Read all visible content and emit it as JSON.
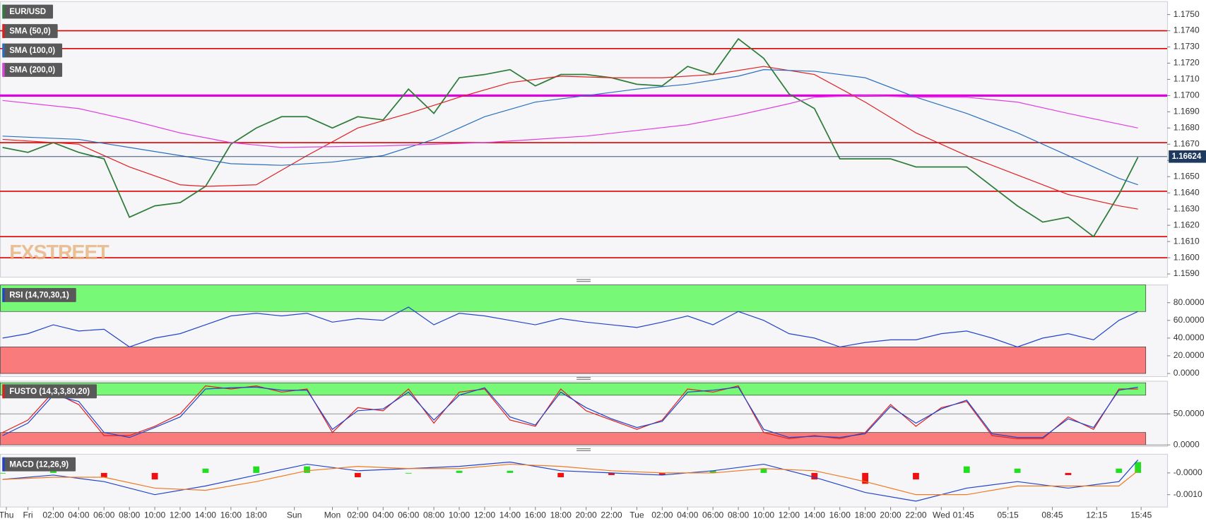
{
  "chart_data": [
    {
      "type": "line",
      "watermark": "FXSTREET",
      "xlim": [
        -2.2,
        89.8
      ],
      "ylim": [
        1.1588,
        1.1758
      ],
      "yticks": [
        {
          "value": 1.159,
          "label": "1.1590"
        },
        {
          "value": 1.16,
          "label": "1.1600"
        },
        {
          "value": 1.161,
          "label": "1.1610"
        },
        {
          "value": 1.162,
          "label": "1.1620"
        },
        {
          "value": 1.163,
          "label": "1.1630"
        },
        {
          "value": 1.164,
          "label": "1.1640"
        },
        {
          "value": 1.165,
          "label": "1.1650"
        },
        {
          "value": 1.166,
          "label": "1.1660"
        },
        {
          "value": 1.167,
          "label": "1.1670"
        },
        {
          "value": 1.168,
          "label": "1.1680"
        },
        {
          "value": 1.169,
          "label": "1.1690"
        },
        {
          "value": 1.17,
          "label": "1.1700"
        },
        {
          "value": 1.171,
          "label": "1.1710"
        },
        {
          "value": 1.172,
          "label": "1.1720"
        },
        {
          "value": 1.173,
          "label": "1.1730"
        },
        {
          "value": 1.174,
          "label": "1.1740"
        },
        {
          "value": 1.175,
          "label": "1.1750"
        }
      ],
      "grid": false,
      "levels": [
        {
          "value": 1.174,
          "color": "#e00000"
        },
        {
          "value": 1.1729,
          "color": "#e00000"
        },
        {
          "value": 1.17,
          "color": "#e000e0"
        },
        {
          "value": 1.1671,
          "color": "#e00000"
        },
        {
          "value": 1.1641,
          "color": "#e00000"
        },
        {
          "value": 1.1613,
          "color": "#e00000"
        },
        {
          "value": 1.16,
          "color": "#e00000"
        }
      ],
      "current_price": {
        "value": 1.16624,
        "label": "1.16624",
        "color": "#1f3a5f"
      },
      "series": [
        {
          "name": "EUR/USD",
          "color": "#2f7d3a",
          "x": [
            -2,
            0,
            2,
            4,
            6,
            8,
            10,
            12,
            14,
            16,
            18,
            20,
            22,
            24,
            26,
            28,
            30,
            32,
            34,
            36,
            38,
            40,
            42,
            44,
            46,
            48,
            50,
            52,
            54,
            56,
            58,
            60,
            62,
            64,
            66,
            68,
            70,
            72,
            74,
            76,
            78,
            80,
            82,
            84,
            86,
            87.5
          ],
          "values": [
            1.1668,
            1.1665,
            1.1671,
            1.1665,
            1.1661,
            1.1625,
            1.1632,
            1.1634,
            1.1644,
            1.167,
            1.168,
            1.1687,
            1.1687,
            1.168,
            1.1687,
            1.1685,
            1.1704,
            1.1689,
            1.1711,
            1.1713,
            1.1716,
            1.1706,
            1.1713,
            1.1713,
            1.1711,
            1.1707,
            1.1706,
            1.1718,
            1.1713,
            1.1735,
            1.1723,
            1.1701,
            1.1692,
            1.1661,
            1.1661,
            1.1661,
            1.1656,
            1.1656,
            1.1656,
            1.1644,
            1.1632,
            1.1622,
            1.1625,
            1.1613,
            1.1639,
            1.1662
          ]
        },
        {
          "name": "SMA (50,0)",
          "color": "#e02020",
          "x": [
            -2,
            4,
            8,
            12,
            14,
            18,
            22,
            26,
            30,
            34,
            38,
            42,
            46,
            50,
            54,
            58,
            62,
            66,
            70,
            74,
            78,
            82,
            86,
            87.5
          ],
          "values": [
            1.1673,
            1.167,
            1.1656,
            1.1645,
            1.1644,
            1.1645,
            1.1663,
            1.168,
            1.1689,
            1.1699,
            1.1708,
            1.1712,
            1.1711,
            1.1711,
            1.1713,
            1.1718,
            1.1713,
            1.1696,
            1.1677,
            1.1663,
            1.1651,
            1.1639,
            1.1632,
            1.163
          ]
        },
        {
          "name": "SMA (100,0)",
          "color": "#2a6fc0",
          "x": [
            -2,
            4,
            8,
            12,
            16,
            20,
            24,
            28,
            32,
            36,
            40,
            44,
            48,
            52,
            56,
            58,
            62,
            66,
            70,
            74,
            78,
            82,
            86,
            87.5
          ],
          "values": [
            1.1675,
            1.1673,
            1.1668,
            1.1663,
            1.1658,
            1.1657,
            1.1659,
            1.1663,
            1.1673,
            1.1687,
            1.1696,
            1.17,
            1.1704,
            1.1707,
            1.1712,
            1.1716,
            1.1715,
            1.1711,
            1.1699,
            1.1689,
            1.1677,
            1.1663,
            1.1649,
            1.1645
          ]
        },
        {
          "name": "SMA (200,0)",
          "color": "#e040e0",
          "x": [
            -2,
            4,
            8,
            12,
            16,
            20,
            28,
            36,
            44,
            52,
            56,
            60,
            62,
            66,
            70,
            74,
            78,
            82,
            87.5
          ],
          "values": [
            1.1697,
            1.1692,
            1.1685,
            1.1677,
            1.1671,
            1.1668,
            1.1669,
            1.1671,
            1.1675,
            1.1682,
            1.1688,
            1.1695,
            1.1699,
            1.17,
            1.1699,
            1.1699,
            1.1696,
            1.1689,
            1.168
          ]
        }
      ]
    },
    {
      "type": "line",
      "title": "RSI (14,70,30,1)",
      "xlim": [
        -2.2,
        89.8
      ],
      "ylim": [
        -3.5,
        100
      ],
      "yticks": [
        {
          "value": 0,
          "label": "0.0000"
        },
        {
          "value": 20,
          "label": "20.0000"
        },
        {
          "value": 40,
          "label": "40.0000"
        },
        {
          "value": 60,
          "label": "60.0000"
        },
        {
          "value": 80,
          "label": "80.0000"
        }
      ],
      "grid": false,
      "bands": [
        {
          "from": 70,
          "to": 100,
          "color": "#77f977"
        },
        {
          "from": 0,
          "to": 30,
          "color": "#fa7b7b"
        }
      ],
      "series": [
        {
          "color": "#2244cc",
          "x": [
            -2,
            0,
            2,
            4,
            6,
            8,
            10,
            12,
            14,
            16,
            18,
            20,
            22,
            24,
            26,
            28,
            30,
            32,
            34,
            36,
            38,
            40,
            42,
            44,
            46,
            48,
            50,
            52,
            54,
            56,
            58,
            60,
            62,
            64,
            66,
            68,
            70,
            72,
            74,
            76,
            78,
            80,
            82,
            84,
            86,
            87.5
          ],
          "values": [
            40,
            45,
            55,
            48,
            50,
            30,
            40,
            45,
            55,
            65,
            68,
            65,
            68,
            58,
            62,
            60,
            75,
            55,
            68,
            65,
            60,
            55,
            62,
            58,
            55,
            52,
            58,
            65,
            55,
            70,
            60,
            45,
            40,
            30,
            35,
            38,
            38,
            45,
            48,
            40,
            30,
            40,
            45,
            38,
            60,
            70
          ]
        }
      ]
    },
    {
      "type": "line",
      "title": "FUSTO (14,3,3,80,20)",
      "xlim": [
        -2.2,
        89.8
      ],
      "ylim": [
        -2.5,
        102.5
      ],
      "yticks": [
        {
          "value": 0,
          "label": "0.0000"
        },
        {
          "value": 50,
          "label": "50.0000"
        }
      ],
      "grid": true,
      "bands": [
        {
          "from": 80,
          "to": 100,
          "color": "#77f977"
        },
        {
          "from": 0,
          "to": 20,
          "color": "#fa7b7b"
        }
      ],
      "series": [
        {
          "color": "#e02020",
          "x": [
            -2,
            0,
            2,
            4,
            6,
            8,
            10,
            12,
            14,
            16,
            18,
            20,
            22,
            24,
            26,
            28,
            30,
            32,
            34,
            36,
            38,
            40,
            42,
            44,
            46,
            48,
            50,
            52,
            54,
            56,
            58,
            60,
            62,
            64,
            66,
            68,
            70,
            72,
            74,
            76,
            78,
            80,
            82,
            84,
            86,
            87.5
          ],
          "values": [
            20,
            40,
            85,
            65,
            15,
            15,
            30,
            50,
            95,
            90,
            95,
            85,
            90,
            20,
            60,
            55,
            90,
            35,
            85,
            90,
            40,
            30,
            90,
            55,
            40,
            25,
            40,
            90,
            85,
            95,
            20,
            10,
            15,
            10,
            20,
            65,
            30,
            60,
            70,
            15,
            10,
            10,
            45,
            25,
            90,
            90
          ]
        },
        {
          "color": "#2244cc",
          "x": [
            -2,
            0,
            2,
            4,
            6,
            8,
            10,
            12,
            14,
            16,
            18,
            20,
            22,
            24,
            26,
            28,
            30,
            32,
            34,
            36,
            38,
            40,
            42,
            44,
            46,
            48,
            50,
            52,
            54,
            56,
            58,
            60,
            62,
            64,
            66,
            68,
            70,
            72,
            74,
            76,
            78,
            80,
            82,
            84,
            86,
            87.5
          ],
          "values": [
            15,
            35,
            80,
            70,
            20,
            12,
            28,
            45,
            90,
            92,
            93,
            88,
            88,
            25,
            55,
            58,
            85,
            40,
            80,
            92,
            45,
            32,
            85,
            60,
            42,
            28,
            38,
            85,
            88,
            93,
            25,
            12,
            14,
            12,
            18,
            62,
            35,
            58,
            72,
            18,
            12,
            12,
            42,
            28,
            88,
            93
          ]
        }
      ]
    },
    {
      "type": "line",
      "title": "MACD (12,26,9)",
      "xlim": [
        -2.2,
        89.8
      ],
      "ylim": [
        -0.00157,
        0.00086
      ],
      "yticks": [
        {
          "value": -0.001,
          "label": "-0.0010"
        },
        {
          "value": 0,
          "label": "-0.0000"
        }
      ],
      "grid": false,
      "positive_color": "#22dd22",
      "negative_color": "#ee1111",
      "xticks": [
        {
          "value": -1.7,
          "label": "Thu"
        },
        {
          "value": 0,
          "label": "Fri"
        },
        {
          "value": 2,
          "label": "02:00"
        },
        {
          "value": 4,
          "label": "04:00"
        },
        {
          "value": 6,
          "label": "06:00"
        },
        {
          "value": 8,
          "label": "08:00"
        },
        {
          "value": 10,
          "label": "10:00"
        },
        {
          "value": 12,
          "label": "12:00"
        },
        {
          "value": 14,
          "label": "14:00"
        },
        {
          "value": 16,
          "label": "16:00"
        },
        {
          "value": 18,
          "label": "18:00"
        },
        {
          "value": 21,
          "label": "Sun"
        },
        {
          "value": 24,
          "label": "Mon"
        },
        {
          "value": 26,
          "label": "02:00"
        },
        {
          "value": 28,
          "label": "04:00"
        },
        {
          "value": 30,
          "label": "06:00"
        },
        {
          "value": 32,
          "label": "08:00"
        },
        {
          "value": 34,
          "label": "10:00"
        },
        {
          "value": 36,
          "label": "12:00"
        },
        {
          "value": 38,
          "label": "14:00"
        },
        {
          "value": 40,
          "label": "16:00"
        },
        {
          "value": 42,
          "label": "18:00"
        },
        {
          "value": 44,
          "label": "20:00"
        },
        {
          "value": 46,
          "label": "22:00"
        },
        {
          "value": 48,
          "label": "Tue"
        },
        {
          "value": 50,
          "label": "02:00"
        },
        {
          "value": 52,
          "label": "04:00"
        },
        {
          "value": 54,
          "label": "06:00"
        },
        {
          "value": 56,
          "label": "08:00"
        },
        {
          "value": 58,
          "label": "10:00"
        },
        {
          "value": 60,
          "label": "12:00"
        },
        {
          "value": 62,
          "label": "14:00"
        },
        {
          "value": 64,
          "label": "16:00"
        },
        {
          "value": 66,
          "label": "18:00"
        },
        {
          "value": 68,
          "label": "20:00"
        },
        {
          "value": 70,
          "label": "22:00"
        },
        {
          "value": 72,
          "label": "Wed"
        },
        {
          "value": 73.75,
          "label": "01:45"
        },
        {
          "value": 77.25,
          "label": "05:15"
        },
        {
          "value": 80.75,
          "label": "08:45"
        },
        {
          "value": 84.25,
          "label": "12:15"
        },
        {
          "value": 87.75,
          "label": "15:45"
        }
      ],
      "series": [
        {
          "type": "bar",
          "x": [
            -2,
            2,
            6,
            10,
            14,
            18,
            22,
            26,
            30,
            34,
            38,
            42,
            46,
            50,
            54,
            58,
            62,
            66,
            70,
            74,
            78,
            82,
            86,
            87.5
          ],
          "values": [
            0.0,
            0.0001,
            -0.0002,
            -0.0003,
            0.0002,
            0.0003,
            0.0003,
            -0.0002,
            0.0,
            0.0001,
            0.0001,
            -0.0002,
            -0.0001,
            -0.0001,
            0.0001,
            0.0002,
            -0.0003,
            -0.0005,
            -0.0003,
            0.0003,
            0.0002,
            -0.0001,
            0.0002,
            0.0005
          ]
        },
        {
          "color": "#2244cc",
          "x": [
            -2,
            2,
            6,
            10,
            14,
            18,
            22,
            26,
            30,
            34,
            38,
            42,
            46,
            50,
            54,
            58,
            62,
            66,
            70,
            74,
            78,
            82,
            86,
            87.5
          ],
          "values": [
            -0.0003,
            -0.0001,
            -0.0004,
            -0.001,
            -0.0006,
            -0.0001,
            0.0004,
            0.0001,
            0.0002,
            0.0003,
            0.0005,
            0.0001,
            0.0,
            -0.0001,
            0.0001,
            0.0004,
            -0.0002,
            -0.0009,
            -0.0013,
            -0.0007,
            -0.0004,
            -0.0007,
            -0.0004,
            0.0006
          ]
        },
        {
          "color": "#f07a20",
          "x": [
            -2,
            2,
            6,
            10,
            14,
            18,
            22,
            26,
            30,
            34,
            38,
            42,
            46,
            50,
            54,
            58,
            62,
            66,
            70,
            74,
            78,
            82,
            86,
            87.5
          ],
          "values": [
            -0.0003,
            -0.0002,
            -0.0002,
            -0.0007,
            -0.0008,
            -0.0004,
            0.0001,
            0.0003,
            0.0002,
            0.0002,
            0.0004,
            0.0003,
            0.0001,
            0.0,
            0.0,
            0.0002,
            0.0001,
            -0.0004,
            -0.001,
            -0.001,
            -0.0006,
            -0.0006,
            -0.0006,
            0.0001
          ]
        }
      ]
    }
  ]
}
